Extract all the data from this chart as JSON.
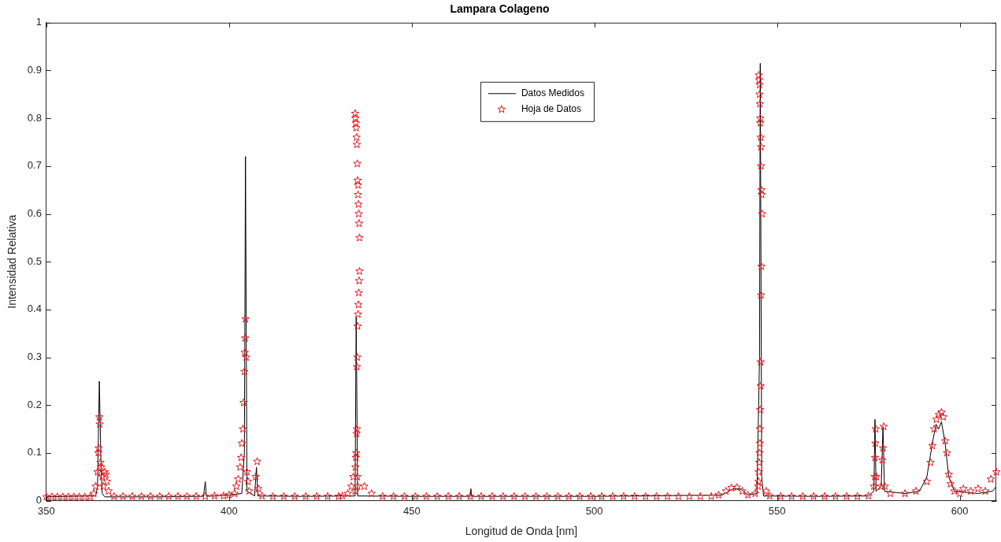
{
  "chart_data": {
    "type": "line",
    "title": "Lampara Colageno",
    "xlabel": "Longitud de Onda [nm]",
    "ylabel": "Intensidad Relativa",
    "xlim": [
      350,
      610
    ],
    "xticks": [
      350,
      400,
      450,
      500,
      550,
      600
    ],
    "ylim": [
      0,
      1
    ],
    "yticks": [
      0,
      0.1,
      0.2,
      0.3,
      0.4,
      0.5,
      0.6,
      0.7,
      0.8,
      0.9,
      1
    ],
    "grid": false,
    "legend": "top",
    "series": [
      {
        "name": "Datos Medidos",
        "type": "line",
        "color": "#000000",
        "marker": "none",
        "x": [
          350,
          363.5,
          364,
          364.5,
          365,
          365.3,
          366,
          380,
          393,
          393.5,
          393.8,
          400,
          403.5,
          404.2,
          404.5,
          404.9,
          407,
          407.5,
          407.9,
          420,
          434.5,
          434.8,
          435.2,
          450,
          466,
          466.2,
          466.4,
          500,
          535,
          538,
          540,
          542,
          544.5,
          545.2,
          545.4,
          545.8,
          546.3,
          560,
          575,
          576.5,
          576.8,
          577.1,
          578.5,
          579,
          579.4,
          585,
          589,
          591,
          592.5,
          593.5,
          594.2,
          595,
          596,
          597,
          598.5,
          605,
          609,
          610
        ],
        "values": [
          0.008,
          0.01,
          0.03,
          0.25,
          0.06,
          0.015,
          0.008,
          0.008,
          0.009,
          0.04,
          0.009,
          0.012,
          0.015,
          0.1,
          0.72,
          0.02,
          0.01,
          0.07,
          0.01,
          0.009,
          0.01,
          0.385,
          0.01,
          0.009,
          0.009,
          0.025,
          0.009,
          0.009,
          0.012,
          0.025,
          0.025,
          0.012,
          0.015,
          0.3,
          0.915,
          0.05,
          0.01,
          0.009,
          0.01,
          0.02,
          0.17,
          0.02,
          0.03,
          0.155,
          0.02,
          0.015,
          0.02,
          0.05,
          0.12,
          0.16,
          0.15,
          0.165,
          0.12,
          0.05,
          0.02,
          0.015,
          0.02,
          0.03
        ]
      },
      {
        "name": "Hoja de Datos",
        "type": "scatter",
        "color": "#e8141c",
        "marker": "star",
        "x": [
          350,
          351.5,
          353,
          354.5,
          356,
          357.5,
          359,
          360.5,
          362,
          363,
          363.5,
          364,
          364.2,
          364.3,
          364.5,
          364.6,
          364.8,
          365,
          365.3,
          365.6,
          366,
          366.3,
          366.6,
          367,
          368.5,
          371,
          373.5,
          376,
          378.5,
          381,
          383.5,
          386,
          388.5,
          391,
          393.5,
          396,
          398.5,
          400,
          401.5,
          402,
          402.5,
          403,
          403.3,
          403.5,
          403.8,
          404,
          404.2,
          404.3,
          404.4,
          404.5,
          404.7,
          404.9,
          405.2,
          405.5,
          407.3,
          407.7,
          408,
          409,
          412,
          415,
          418,
          421,
          424,
          427,
          430,
          431,
          432.5,
          433.5,
          434,
          434.5,
          434.5,
          434.6,
          434.6,
          434.7,
          434.7,
          434.8,
          434.8,
          434.9,
          434.9,
          435,
          435,
          435,
          435.1,
          435.1,
          435.1,
          435.2,
          435.2,
          435.2,
          435.3,
          435.3,
          435.3,
          435.4,
          435.4,
          435.5,
          435.5,
          435.6,
          435.6,
          435.7,
          435.7,
          437,
          439,
          442,
          445,
          448,
          451,
          454,
          457,
          460,
          463,
          466,
          469,
          472,
          475,
          478,
          481,
          484,
          487,
          490,
          493,
          496,
          499,
          502,
          505,
          508,
          511,
          514,
          517,
          520,
          523,
          526,
          529,
          532,
          534,
          536,
          537.5,
          539,
          540.5,
          542,
          544,
          544.8,
          544.9,
          545,
          545,
          545.1,
          545.1,
          545.2,
          545.2,
          545.2,
          545.3,
          545.3,
          545.3,
          545.4,
          545.4,
          545.4,
          545.5,
          545.5,
          545.5,
          545.6,
          545.6,
          545.6,
          545.7,
          545.7,
          545.8,
          545.9,
          547,
          548,
          551,
          554,
          557,
          560,
          563,
          566,
          569,
          572,
          575,
          576.5,
          576.7,
          576.8,
          576.9,
          577,
          577.2,
          578.5,
          578.8,
          579,
          579.2,
          579.5,
          581,
          585,
          588,
          591,
          592,
          592.5,
          593,
          593.6,
          594.3,
          595,
          595.5,
          596,
          596.5,
          597,
          597.5,
          598.5,
          600,
          601,
          603,
          605,
          607,
          608.5,
          610
        ],
        "values": [
          0.008,
          0.008,
          0.008,
          0.008,
          0.008,
          0.008,
          0.008,
          0.008,
          0.008,
          0.015,
          0.03,
          0.06,
          0.1,
          0.11,
          0.175,
          0.16,
          0.08,
          0.07,
          0.05,
          0.03,
          0.06,
          0.055,
          0.04,
          0.02,
          0.009,
          0.009,
          0.009,
          0.009,
          0.009,
          0.009,
          0.009,
          0.009,
          0.009,
          0.009,
          0.009,
          0.01,
          0.01,
          0.012,
          0.015,
          0.03,
          0.045,
          0.07,
          0.09,
          0.12,
          0.15,
          0.205,
          0.27,
          0.31,
          0.34,
          0.38,
          0.3,
          0.06,
          0.04,
          0.02,
          0.05,
          0.082,
          0.025,
          0.01,
          0.009,
          0.009,
          0.009,
          0.009,
          0.009,
          0.009,
          0.009,
          0.01,
          0.015,
          0.03,
          0.05,
          0.81,
          0.02,
          0.8,
          0.07,
          0.79,
          0.09,
          0.78,
          0.1,
          0.76,
          0.14,
          0.745,
          0.15,
          0.28,
          0.705,
          0.3,
          0.05,
          0.67,
          0.365,
          0.03,
          0.66,
          0.39,
          0.64,
          0.41,
          0.62,
          0.435,
          0.6,
          0.46,
          0.58,
          0.48,
          0.55,
          0.03,
          0.015,
          0.009,
          0.009,
          0.009,
          0.009,
          0.009,
          0.009,
          0.009,
          0.009,
          0.009,
          0.009,
          0.009,
          0.009,
          0.009,
          0.009,
          0.009,
          0.009,
          0.009,
          0.009,
          0.009,
          0.009,
          0.009,
          0.009,
          0.009,
          0.009,
          0.009,
          0.009,
          0.009,
          0.009,
          0.009,
          0.009,
          0.009,
          0.012,
          0.02,
          0.027,
          0.028,
          0.02,
          0.012,
          0.015,
          0.03,
          0.04,
          0.89,
          0.06,
          0.88,
          0.08,
          0.87,
          0.1,
          0.85,
          0.12,
          0.83,
          0.15,
          0.8,
          0.19,
          0.79,
          0.24,
          0.76,
          0.29,
          0.74,
          0.43,
          0.7,
          0.49,
          0.65,
          0.64,
          0.6,
          0.02,
          0.01,
          0.009,
          0.009,
          0.009,
          0.009,
          0.009,
          0.009,
          0.009,
          0.009,
          0.01,
          0.03,
          0.05,
          0.09,
          0.12,
          0.15,
          0.05,
          0.03,
          0.085,
          0.11,
          0.155,
          0.03,
          0.015,
          0.015,
          0.02,
          0.04,
          0.08,
          0.115,
          0.15,
          0.17,
          0.18,
          0.185,
          0.175,
          0.125,
          0.1,
          0.055,
          0.035,
          0.02,
          0.015,
          0.025,
          0.02,
          0.025,
          0.02,
          0.045,
          0.06
        ]
      }
    ]
  }
}
